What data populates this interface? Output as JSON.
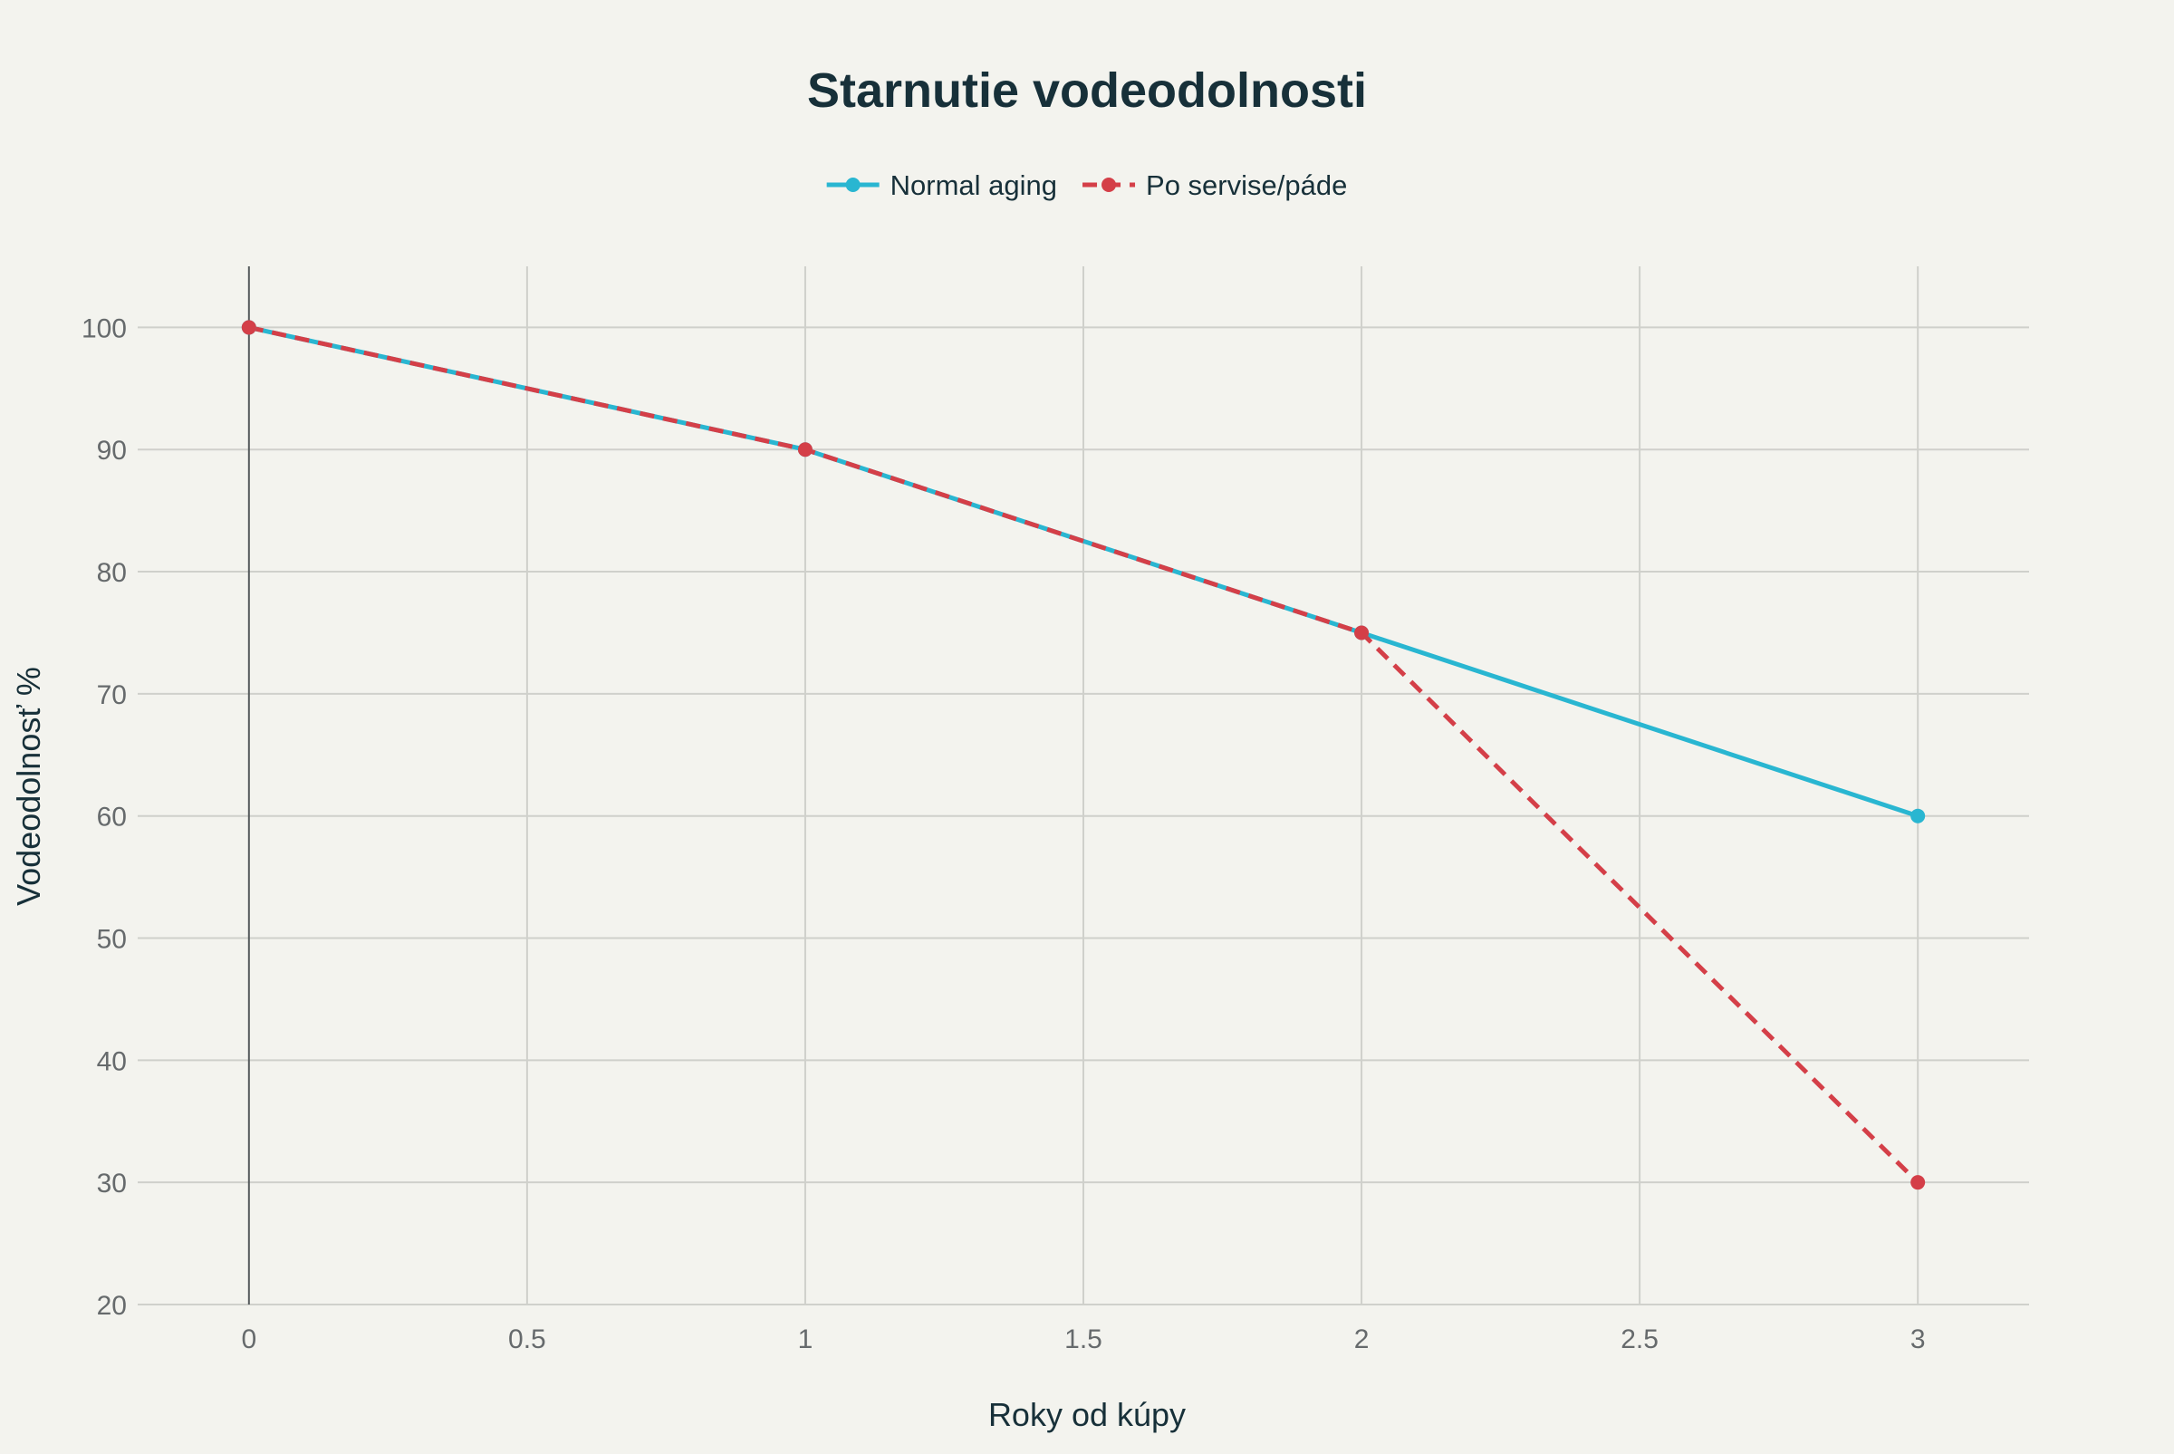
{
  "chart_data": {
    "type": "line",
    "title": "Starnutie vodeodolnosti",
    "xlabel": "Roky od kúpy",
    "ylabel": "Vodeodolnosť %",
    "x": [
      0,
      1,
      2,
      3
    ],
    "xlim": [
      -0.2,
      3.2
    ],
    "ylim": [
      20,
      105
    ],
    "xticks": [
      0,
      0.5,
      1,
      1.5,
      2,
      2.5,
      3
    ],
    "xtick_labels": [
      "0",
      "0.5",
      "1",
      "1.5",
      "2",
      "2.5",
      "3"
    ],
    "yticks": [
      20,
      30,
      40,
      50,
      60,
      70,
      80,
      90,
      100
    ],
    "ytick_labels": [
      "20",
      "30",
      "40",
      "50",
      "60",
      "70",
      "80",
      "90",
      "100"
    ],
    "grid": true,
    "legend_position": "top-center",
    "series": [
      {
        "name": "Normal aging",
        "x": [
          0,
          1,
          2,
          3
        ],
        "values": [
          100,
          90,
          75,
          60
        ],
        "color": "#29b6d1",
        "dash": "solid"
      },
      {
        "name": "Po servise/páde",
        "x": [
          0,
          1,
          2,
          3
        ],
        "values": [
          100,
          90,
          75,
          30
        ],
        "color": "#d43f48",
        "dash": "dashed"
      }
    ]
  }
}
